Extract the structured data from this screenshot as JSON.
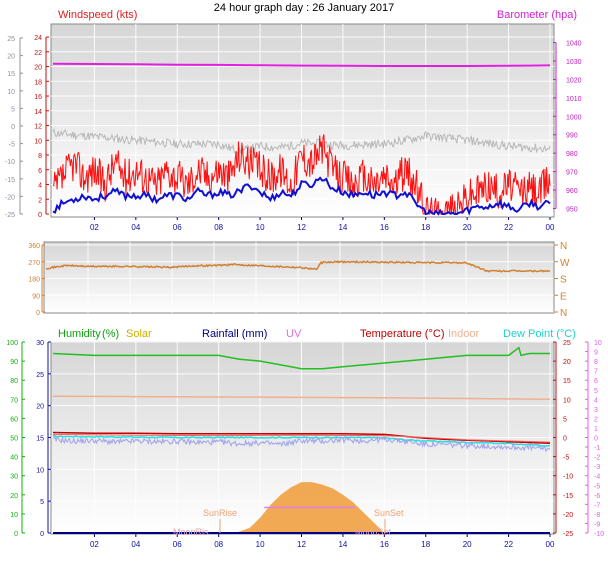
{
  "title": "24 hour graph day : 26 January 2017",
  "colors": {
    "wind_avg": "#1010d0",
    "wind_gust": "#ff1010",
    "barometer": "#e020e0",
    "gray_trace": "#b8b8b8",
    "direction": "#d08030",
    "humidity": "#20c020",
    "solar": "#e0c000",
    "rainfall": "#000080",
    "uv": "#e080e0",
    "temperature": "#c00000",
    "indoor": "#f0b090",
    "dew_point": "#20e0e0",
    "outdoor_temp_trace": "#ff6060",
    "blue_trace": "#a0a0f0",
    "solar_fill": "#f0a040",
    "plot_bg_top": "#d8d8d8",
    "plot_bg_bottom": "#ffffff"
  },
  "chart_data": [
    {
      "type": "line",
      "name": "wind",
      "labels": {
        "left": "Windspeed (kts)",
        "right": "Barometer (hpa)"
      },
      "x_ticks": [
        "02",
        "04",
        "06",
        "08",
        "10",
        "12",
        "14",
        "16",
        "18",
        "20",
        "22",
        "00"
      ],
      "x_range_hours": [
        0,
        24
      ],
      "y_left_ticks": [
        0,
        2,
        4,
        6,
        8,
        10,
        12,
        14,
        16,
        18,
        20,
        22,
        24
      ],
      "y_left_range": [
        0,
        25.5
      ],
      "y_outer_ticks": [
        -25,
        -20,
        -15,
        -10,
        -5,
        0,
        5,
        10,
        15,
        20,
        25
      ],
      "y_right_ticks": [
        950,
        960,
        970,
        980,
        990,
        1000,
        1010,
        1020,
        1030,
        1040
      ],
      "y_right_range": [
        947,
        1049
      ],
      "grid": true,
      "series": [
        {
          "role": "barometer",
          "x": [
            0,
            2,
            4,
            6,
            8,
            10,
            12,
            14,
            16,
            18,
            20,
            22,
            23,
            24
          ],
          "values": [
            1028.5,
            1028.4,
            1028.2,
            1028,
            1027.9,
            1027.7,
            1027.5,
            1027.4,
            1027.3,
            1027.3,
            1027.3,
            1027.4,
            1027.5,
            1027.6
          ]
        },
        {
          "role": "gray_trace",
          "x": [
            0,
            2,
            4,
            6,
            8,
            9,
            10,
            11,
            12,
            13,
            14,
            15,
            16,
            17,
            18,
            19,
            20,
            21,
            22,
            23,
            24
          ],
          "values": [
            11,
            10.5,
            10,
            9.5,
            9.5,
            8.5,
            9.2,
            9,
            9.6,
            9.5,
            9.3,
            9.4,
            9.5,
            10,
            10.6,
            10.3,
            10,
            9.6,
            9.2,
            9,
            8.8
          ]
        },
        {
          "role": "wind_gust",
          "x": [
            0,
            0.5,
            1,
            1.5,
            2,
            2.5,
            3,
            3.5,
            4,
            4.5,
            5,
            5.5,
            6,
            6.5,
            7,
            7.5,
            8,
            8.5,
            9,
            9.5,
            10,
            10.5,
            11,
            11.5,
            12,
            12.5,
            13,
            13.5,
            14,
            14.5,
            15,
            15.5,
            16,
            16.5,
            17,
            17.5,
            18,
            18.5,
            19,
            19.5,
            20,
            20.5,
            21,
            21.5,
            22,
            22.5,
            23,
            23.5,
            24
          ],
          "values": [
            3,
            5,
            7,
            5,
            6,
            4,
            7,
            5,
            6,
            5,
            4,
            6,
            5,
            4,
            6,
            5,
            6,
            5,
            8,
            7,
            6,
            5,
            6,
            4,
            8,
            7,
            9,
            6,
            5,
            4,
            5,
            4,
            5,
            4,
            6,
            4,
            0.5,
            0,
            0.5,
            0.5,
            2.5,
            3,
            4,
            3,
            4,
            3,
            3.5,
            3,
            5
          ]
        },
        {
          "role": "wind_avg",
          "x": [
            0,
            0.5,
            1,
            1.5,
            2,
            2.5,
            3,
            3.5,
            4,
            4.5,
            5,
            5.5,
            6,
            6.5,
            7,
            7.5,
            8,
            8.5,
            9,
            9.5,
            10,
            10.5,
            11,
            11.5,
            12,
            12.5,
            13,
            13.5,
            14,
            14.5,
            15,
            15.5,
            16,
            16.5,
            17,
            17.5,
            18,
            18.5,
            19,
            19.5,
            20,
            20.5,
            21,
            21.5,
            22,
            22.5,
            23,
            23.5,
            24
          ],
          "values": [
            0.5,
            1.5,
            2,
            2.5,
            2,
            2.5,
            3,
            2.5,
            2.5,
            2.5,
            2,
            2.5,
            2.5,
            2,
            3,
            2.5,
            3,
            2.5,
            3,
            4,
            3,
            2,
            3,
            2.5,
            4,
            4,
            5,
            3.5,
            3,
            2.5,
            3,
            2.5,
            3,
            2.5,
            3,
            1.5,
            0.2,
            0,
            0,
            0,
            0.5,
            1,
            1,
            1.5,
            1,
            0.5,
            1.5,
            1,
            1.5
          ]
        }
      ]
    },
    {
      "type": "line",
      "name": "wind_direction",
      "y_left_ticks": [
        0,
        90,
        180,
        270,
        360
      ],
      "y_range": [
        0,
        360
      ],
      "y_right_ticks": [
        "N",
        "W",
        "S",
        "E",
        "N"
      ],
      "grid": true,
      "series": [
        {
          "role": "direction",
          "x": [
            0,
            1,
            2,
            4,
            6,
            7,
            8,
            9,
            10,
            11,
            12,
            12.9,
            13.1,
            14,
            16,
            18,
            19,
            20,
            21,
            22,
            23,
            24
          ],
          "values": [
            235,
            250,
            245,
            245,
            240,
            248,
            250,
            255,
            250,
            245,
            240,
            230,
            265,
            270,
            268,
            265,
            265,
            265,
            220,
            220,
            220,
            220
          ]
        }
      ]
    },
    {
      "type": "line",
      "name": "weather",
      "labels": {
        "humidity": "Humidity",
        "humidity_unit": "(%)",
        "solar": "Solar",
        "rainfall": "Rainfall (mm)",
        "uv": "UV",
        "temperature": "Temperature (°C)",
        "indoor": "Indoor",
        "dew_point": "Dew Point (°C)"
      },
      "annotations": [
        "SunRise",
        "SunSet",
        "MoonRis",
        "MoonSet"
      ],
      "x_ticks": [
        "02",
        "04",
        "06",
        "08",
        "10",
        "12",
        "14",
        "16",
        "18",
        "20",
        "22",
        "00"
      ],
      "humidity_ticks": [
        0,
        10,
        20,
        30,
        40,
        50,
        60,
        70,
        80,
        90,
        100
      ],
      "rainfall_ticks": [
        0,
        5,
        10,
        15,
        20,
        25,
        30
      ],
      "temperature_ticks": [
        -25,
        -20,
        -15,
        -10,
        -5,
        0,
        5,
        10,
        15,
        20,
        25
      ],
      "uv_ticks": [
        -10,
        -9,
        -8,
        -7,
        -6,
        -5,
        -4,
        -3,
        -2,
        -1,
        0,
        1,
        2,
        3,
        4,
        5,
        6,
        7,
        8,
        9,
        10
      ],
      "grid": true,
      "series": [
        {
          "role": "humidity",
          "x": [
            0,
            2,
            4,
            6,
            8,
            9,
            10,
            11,
            12,
            13,
            14,
            15,
            16,
            17,
            18,
            19,
            20,
            21,
            22,
            22.5,
            22.6,
            23,
            24
          ],
          "values": [
            94,
            93,
            93,
            93,
            93,
            91,
            90,
            88,
            86,
            86,
            87,
            88,
            89,
            90,
            91,
            92,
            93,
            93,
            93,
            97,
            93,
            94,
            94
          ]
        },
        {
          "role": "indoor",
          "x": [
            0,
            4,
            8,
            12,
            16,
            20,
            24
          ],
          "values": [
            10.8,
            10.7,
            10.6,
            10.5,
            10.4,
            10.2,
            10
          ]
        },
        {
          "role": "temperature",
          "x": [
            0,
            2,
            4,
            6,
            8,
            10,
            12,
            14,
            16,
            17,
            18,
            19,
            20,
            21,
            22,
            23,
            24
          ],
          "values": [
            1.3,
            1.1,
            1.1,
            1,
            1,
            1,
            1,
            1,
            0.8,
            0.3,
            -0.2,
            -0.5,
            -0.7,
            -0.9,
            -1.1,
            -1.3,
            -1.5
          ]
        },
        {
          "role": "dew_point",
          "x": [
            0,
            2,
            4,
            6,
            8,
            10,
            12,
            14,
            16,
            17,
            18,
            19,
            20,
            21,
            22,
            23,
            24
          ],
          "values": [
            0.3,
            0.2,
            0.1,
            0,
            0,
            0,
            0,
            0,
            -0.1,
            -0.6,
            -0.9,
            -1.1,
            -1.3,
            -1.4,
            -1.6,
            -1.9,
            -2.2
          ]
        },
        {
          "role": "outdoor_temp_trace",
          "x": [
            0,
            4,
            8,
            12,
            16,
            18,
            20,
            24
          ],
          "values": [
            0.8,
            0.6,
            0.5,
            0.6,
            0.5,
            0,
            -0.6,
            -1.2
          ]
        },
        {
          "role": "blue_trace",
          "x": [
            0,
            1,
            2,
            3,
            4,
            5,
            6,
            7,
            8,
            9,
            10,
            11,
            12,
            13,
            14,
            15,
            16,
            17,
            18,
            19,
            20,
            21,
            22,
            23,
            24
          ],
          "values": [
            -0.5,
            -1,
            -0.8,
            -1.2,
            -0.9,
            -1.1,
            -1,
            -1.3,
            -1.2,
            -1.6,
            -1.4,
            -1.8,
            -0.8,
            -1,
            -0.6,
            -0.9,
            -0.4,
            -1,
            -1.8,
            -1.9,
            -2.1,
            -2.3,
            -2.5,
            -2.7,
            -3
          ]
        },
        {
          "role": "solar",
          "x": [
            8.8,
            9.5,
            10,
            10.5,
            11,
            11.5,
            12,
            12.5,
            13,
            13.5,
            14,
            14.5,
            15,
            15.5,
            16
          ],
          "values": [
            0,
            4,
            12,
            22,
            30,
            36,
            40,
            40,
            38,
            35,
            30,
            24,
            16,
            8,
            0
          ]
        },
        {
          "role": "rainfall",
          "x": [
            0,
            24
          ],
          "values": [
            0,
            0
          ]
        }
      ]
    }
  ]
}
